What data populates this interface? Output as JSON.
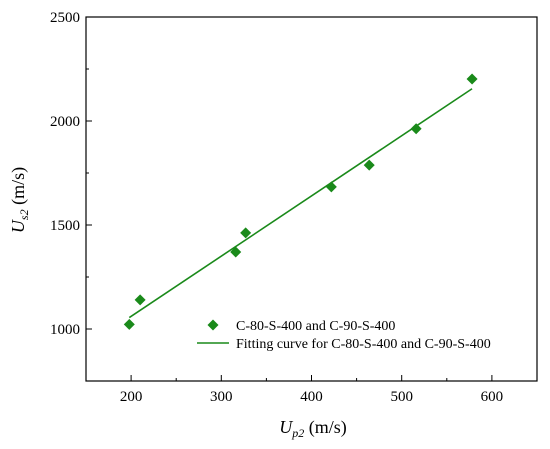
{
  "chart_data": {
    "type": "scatter",
    "xlabel": {
      "main": "U",
      "sub": "p2",
      "unit": " (m/s)"
    },
    "ylabel": {
      "main": "U",
      "sub": "s2",
      "unit": " (m/s)"
    },
    "xlim": [
      150,
      650
    ],
    "ylim": [
      750,
      2500
    ],
    "xticks": [
      200,
      300,
      400,
      500,
      600
    ],
    "yticks": [
      1000,
      1500,
      2000,
      2500
    ],
    "grid": false,
    "legend_position": "bottom-right",
    "series": [
      {
        "name": "C-80-S-400 and C-90-S-400",
        "kind": "points",
        "marker": "diamond",
        "color": "#1a8a1a",
        "x": [
          198,
          210,
          316,
          327,
          422,
          464,
          516,
          578
        ],
        "y": [
          1022,
          1140,
          1370,
          1462,
          1683,
          1788,
          1963,
          2202
        ]
      },
      {
        "name": "Fitting curve for C-80-S-400 and C-90-S-400",
        "kind": "line",
        "color": "#1a8a1a",
        "x": [
          198,
          578
        ],
        "y": [
          1055,
          2155
        ]
      }
    ]
  }
}
